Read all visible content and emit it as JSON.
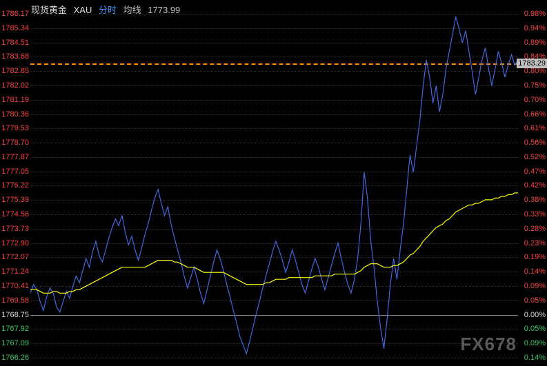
{
  "header": {
    "title": "现货黄金",
    "symbol": "XAU",
    "period": "分时",
    "indicator": "均线",
    "last_price": "1773.99",
    "title_color": "#dcdcdc",
    "symbol_color": "#dcdcdc",
    "period_color": "#3399ff",
    "indicator_color": "#c0c0c0",
    "price_color": "#c0c0c0"
  },
  "chart": {
    "type": "line",
    "background_color": "#000000",
    "grid_color": "#333333",
    "price_line_color": "#4169e1",
    "price_line_width": 1.2,
    "ma_line_color": "#ffff00",
    "ma_line_width": 1.2,
    "current_line_color": "#ff8c00",
    "current_box_bg": "#c0c0c0",
    "current_box_text": "#000000",
    "zero_line_color": "#888888",
    "watermark_text": "FX678",
    "watermark_color": "#a0a0a0",
    "ylim_price": [
      1766.26,
      1786.17
    ],
    "ylim_pct": [
      -0.14,
      0.98
    ],
    "current_price": 1783.29,
    "left_ticks": [
      {
        "v": 1786.17,
        "c": "#ff4040"
      },
      {
        "v": 1785.34,
        "c": "#ff4040"
      },
      {
        "v": 1784.51,
        "c": "#ff4040"
      },
      {
        "v": 1783.68,
        "c": "#ff4040"
      },
      {
        "v": 1782.85,
        "c": "#ff4040"
      },
      {
        "v": 1782.02,
        "c": "#ff4040"
      },
      {
        "v": 1781.19,
        "c": "#ff4040"
      },
      {
        "v": 1780.36,
        "c": "#ff4040"
      },
      {
        "v": 1779.53,
        "c": "#ff4040"
      },
      {
        "v": 1778.7,
        "c": "#ff4040"
      },
      {
        "v": 1777.87,
        "c": "#ff4040"
      },
      {
        "v": 1777.05,
        "c": "#ff4040"
      },
      {
        "v": 1776.22,
        "c": "#ff4040"
      },
      {
        "v": 1775.39,
        "c": "#ff4040"
      },
      {
        "v": 1774.56,
        "c": "#ff4040"
      },
      {
        "v": 1773.73,
        "c": "#ff4040"
      },
      {
        "v": 1772.9,
        "c": "#ff4040"
      },
      {
        "v": 1772.07,
        "c": "#ff4040"
      },
      {
        "v": 1771.24,
        "c": "#ff4040"
      },
      {
        "v": 1770.41,
        "c": "#ff4040"
      },
      {
        "v": 1769.58,
        "c": "#ff4040"
      },
      {
        "v": 1768.75,
        "c": "#dcdcdc"
      },
      {
        "v": 1767.92,
        "c": "#33cc66"
      },
      {
        "v": 1767.09,
        "c": "#33cc66"
      },
      {
        "v": 1766.26,
        "c": "#33cc66"
      }
    ],
    "right_ticks": [
      {
        "v": "0.98%",
        "c": "#ff4040"
      },
      {
        "v": "0.94%",
        "c": "#ff4040"
      },
      {
        "v": "0.89%",
        "c": "#ff4040"
      },
      {
        "v": "0.84%",
        "c": "#ff4040"
      },
      {
        "v": "0.80%",
        "c": "#ff4040"
      },
      {
        "v": "0.75%",
        "c": "#ff4040"
      },
      {
        "v": "0.70%",
        "c": "#ff4040"
      },
      {
        "v": "0.66%",
        "c": "#ff4040"
      },
      {
        "v": "0.61%",
        "c": "#ff4040"
      },
      {
        "v": "0.56%",
        "c": "#ff4040"
      },
      {
        "v": "0.52%",
        "c": "#ff4040"
      },
      {
        "v": "0.47%",
        "c": "#ff4040"
      },
      {
        "v": "0.42%",
        "c": "#ff4040"
      },
      {
        "v": "0.38%",
        "c": "#ff4040"
      },
      {
        "v": "0.33%",
        "c": "#ff4040"
      },
      {
        "v": "0.28%",
        "c": "#ff4040"
      },
      {
        "v": "0.23%",
        "c": "#ff4040"
      },
      {
        "v": "0.19%",
        "c": "#ff4040"
      },
      {
        "v": "0.14%",
        "c": "#ff4040"
      },
      {
        "v": "0.09%",
        "c": "#ff4040"
      },
      {
        "v": "0.05%",
        "c": "#ff4040"
      },
      {
        "v": "0.00%",
        "c": "#dcdcdc"
      },
      {
        "v": "0.05%",
        "c": "#33cc66"
      },
      {
        "v": "0.09%",
        "c": "#33cc66"
      },
      {
        "v": "0.14%",
        "c": "#33cc66"
      }
    ],
    "price_series": [
      1770.0,
      1770.5,
      1770.2,
      1769.5,
      1769.0,
      1769.8,
      1770.3,
      1770.0,
      1769.2,
      1768.9,
      1769.5,
      1770.1,
      1769.7,
      1770.4,
      1771.0,
      1770.6,
      1771.3,
      1772.0,
      1771.5,
      1772.4,
      1773.0,
      1772.2,
      1771.8,
      1772.5,
      1773.2,
      1773.8,
      1774.3,
      1773.9,
      1774.5,
      1773.5,
      1772.8,
      1773.3,
      1772.5,
      1771.9,
      1772.6,
      1773.4,
      1774.0,
      1774.8,
      1775.5,
      1776.0,
      1775.2,
      1774.5,
      1775.0,
      1774.0,
      1773.2,
      1772.5,
      1771.8,
      1771.0,
      1770.3,
      1770.9,
      1771.5,
      1770.8,
      1770.0,
      1769.4,
      1770.2,
      1771.0,
      1771.8,
      1772.5,
      1772.0,
      1771.3,
      1770.5,
      1769.8,
      1769.0,
      1768.3,
      1767.5,
      1767.0,
      1766.5,
      1767.2,
      1768.0,
      1768.8,
      1769.5,
      1770.3,
      1771.0,
      1771.7,
      1772.4,
      1773.0,
      1772.5,
      1771.9,
      1771.2,
      1771.8,
      1772.5,
      1771.9,
      1771.2,
      1770.5,
      1770.0,
      1770.7,
      1771.4,
      1772.0,
      1771.5,
      1770.8,
      1770.2,
      1770.9,
      1771.6,
      1772.3,
      1772.9,
      1772.0,
      1771.2,
      1770.5,
      1770.0,
      1770.8,
      1772.0,
      1774.0,
      1777.0,
      1775.5,
      1773.0,
      1771.5,
      1769.5,
      1768.0,
      1766.8,
      1768.5,
      1770.5,
      1772.0,
      1770.8,
      1772.5,
      1774.0,
      1776.0,
      1778.0,
      1777.0,
      1778.5,
      1780.0,
      1782.0,
      1783.5,
      1782.5,
      1781.0,
      1782.0,
      1780.5,
      1781.5,
      1783.0,
      1784.0,
      1785.0,
      1786.0,
      1785.3,
      1784.5,
      1785.2,
      1784.0,
      1782.8,
      1781.5,
      1782.5,
      1783.5,
      1784.2,
      1783.0,
      1782.0,
      1783.0,
      1784.0,
      1783.3,
      1782.5,
      1783.2,
      1783.8,
      1783.2,
      1783.5
    ],
    "ma_series": [
      1770.2,
      1770.2,
      1770.2,
      1770.1,
      1770.0,
      1770.0,
      1770.0,
      1770.1,
      1770.1,
      1770.0,
      1770.0,
      1770.0,
      1770.1,
      1770.1,
      1770.2,
      1770.2,
      1770.3,
      1770.4,
      1770.5,
      1770.6,
      1770.7,
      1770.8,
      1770.9,
      1771.0,
      1771.1,
      1771.2,
      1771.3,
      1771.4,
      1771.5,
      1771.5,
      1771.5,
      1771.5,
      1771.5,
      1771.5,
      1771.5,
      1771.5,
      1771.6,
      1771.7,
      1771.8,
      1771.9,
      1771.9,
      1771.9,
      1771.9,
      1771.9,
      1771.8,
      1771.8,
      1771.7,
      1771.6,
      1771.5,
      1771.5,
      1771.5,
      1771.4,
      1771.3,
      1771.2,
      1771.2,
      1771.2,
      1771.2,
      1771.2,
      1771.2,
      1771.2,
      1771.1,
      1771.0,
      1770.9,
      1770.8,
      1770.7,
      1770.6,
      1770.5,
      1770.5,
      1770.5,
      1770.5,
      1770.5,
      1770.5,
      1770.6,
      1770.6,
      1770.7,
      1770.8,
      1770.8,
      1770.8,
      1770.8,
      1770.9,
      1770.9,
      1770.9,
      1770.9,
      1770.9,
      1770.9,
      1770.9,
      1770.9,
      1771.0,
      1771.0,
      1771.0,
      1771.0,
      1771.0,
      1771.0,
      1771.1,
      1771.1,
      1771.1,
      1771.1,
      1771.1,
      1771.1,
      1771.1,
      1771.2,
      1771.3,
      1771.5,
      1771.6,
      1771.7,
      1771.7,
      1771.7,
      1771.6,
      1771.5,
      1771.5,
      1771.5,
      1771.6,
      1771.6,
      1771.7,
      1771.8,
      1772.0,
      1772.2,
      1772.3,
      1772.5,
      1772.7,
      1773.0,
      1773.2,
      1773.4,
      1773.6,
      1773.8,
      1773.9,
      1774.0,
      1774.2,
      1774.3,
      1774.5,
      1774.7,
      1774.8,
      1774.9,
      1775.0,
      1775.1,
      1775.1,
      1775.2,
      1775.2,
      1775.3,
      1775.4,
      1775.4,
      1775.4,
      1775.5,
      1775.5,
      1775.6,
      1775.6,
      1775.7,
      1775.7,
      1775.8,
      1775.8
    ]
  }
}
